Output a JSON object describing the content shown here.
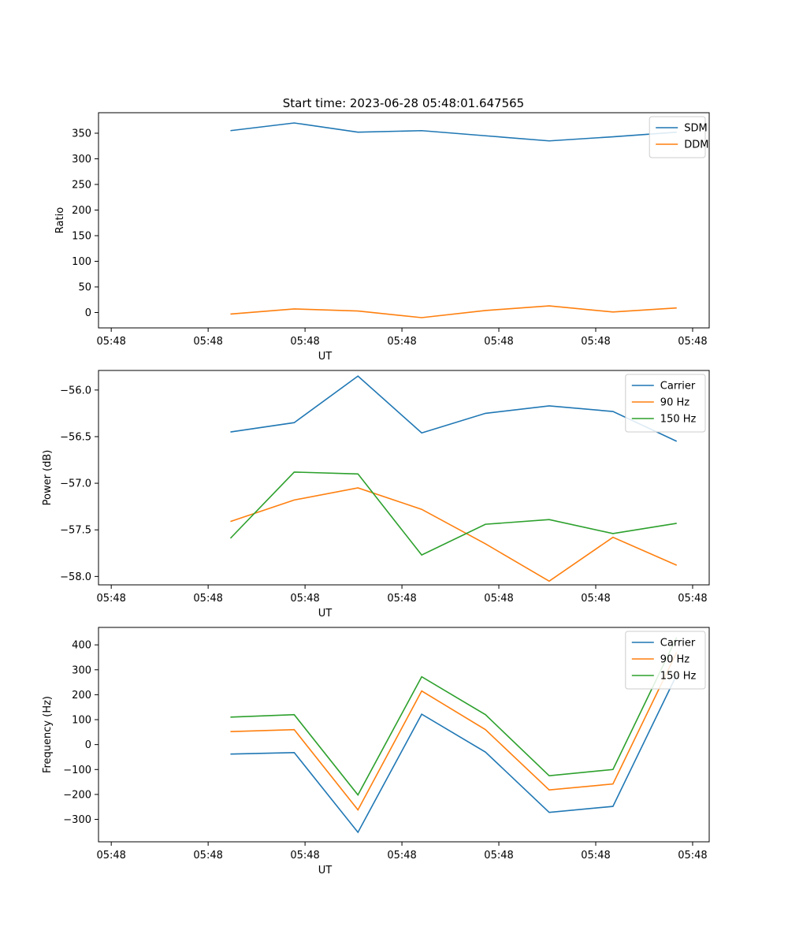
{
  "figure_title": "Start time: 2023-06-28 05:48:01.647565",
  "chart_data": [
    {
      "type": "line",
      "ylabel": "Ratio",
      "xlabel": "UT",
      "xticklabels": [
        "05:48",
        "05:48",
        "05:48",
        "05:48",
        "05:48",
        "05:48",
        "05:48"
      ],
      "xlim": [
        -1.07,
        8.51
      ],
      "ylim": [
        -30,
        390
      ],
      "yticks": [
        0,
        50,
        100,
        150,
        200,
        250,
        300,
        350
      ],
      "yticklabels": [
        "0",
        "50",
        "100",
        "150",
        "200",
        "250",
        "300",
        "350"
      ],
      "legend": "top-right",
      "x": [
        1,
        2,
        3,
        4,
        5,
        6,
        7,
        8
      ],
      "series": [
        {
          "name": "SDM",
          "color": "#1f77b4",
          "values": [
            355,
            370,
            352,
            355,
            345,
            335,
            343,
            352
          ]
        },
        {
          "name": "DDM",
          "color": "#ff7f0e",
          "values": [
            -3,
            7,
            3,
            -10,
            4,
            13,
            1,
            9
          ]
        }
      ]
    },
    {
      "type": "line",
      "ylabel": "Power (dB)",
      "xlabel": "UT",
      "xticklabels": [
        "05:48",
        "05:48",
        "05:48",
        "05:48",
        "05:48",
        "05:48",
        "05:48"
      ],
      "xlim": [
        -1.07,
        8.51
      ],
      "ylim": [
        -58.09,
        -55.79
      ],
      "yticks": [
        -56.0,
        -56.5,
        -57.0,
        -57.5,
        -58.0
      ],
      "yticklabels": [
        "−56.0",
        "−56.5",
        "−57.0",
        "−57.5",
        "−58.0"
      ],
      "legend": "top-right",
      "x": [
        1,
        2,
        3,
        4,
        5,
        6,
        7,
        8
      ],
      "series": [
        {
          "name": "Carrier",
          "color": "#1f77b4",
          "values": [
            -56.45,
            -56.35,
            -55.85,
            -56.46,
            -56.25,
            -56.17,
            -56.23,
            -56.55
          ]
        },
        {
          "name": "90 Hz",
          "color": "#ff7f0e",
          "values": [
            -57.41,
            -57.18,
            -57.05,
            -57.28,
            -57.65,
            -58.05,
            -57.58,
            -57.88
          ]
        },
        {
          "name": "150 Hz",
          "color": "#2ca02c",
          "values": [
            -57.59,
            -56.88,
            -56.9,
            -57.77,
            -57.44,
            -57.39,
            -57.54,
            -57.43
          ]
        }
      ]
    },
    {
      "type": "line",
      "ylabel": "Frequency (Hz)",
      "xlabel": "UT",
      "xticklabels": [
        "05:48",
        "05:48",
        "05:48",
        "05:48",
        "05:48",
        "05:48",
        "05:48"
      ],
      "xlim": [
        -1.07,
        8.51
      ],
      "ylim": [
        -390,
        470
      ],
      "yticks": [
        400,
        300,
        200,
        100,
        0,
        -100,
        -200,
        -300
      ],
      "yticklabels": [
        "400",
        "300",
        "200",
        "100",
        "0",
        "−100",
        "−200",
        "−300"
      ],
      "legend": "top-right",
      "x": [
        1,
        2,
        3,
        4,
        5,
        6,
        7,
        8
      ],
      "series": [
        {
          "name": "Carrier",
          "color": "#1f77b4",
          "values": [
            -38,
            -32,
            -352,
            122,
            -30,
            -272,
            -248,
            280
          ]
        },
        {
          "name": "90 Hz",
          "color": "#ff7f0e",
          "values": [
            52,
            60,
            -262,
            215,
            60,
            -182,
            -158,
            370
          ]
        },
        {
          "name": "150 Hz",
          "color": "#2ca02c",
          "values": [
            110,
            120,
            -202,
            272,
            120,
            -125,
            -100,
            430
          ]
        }
      ]
    }
  ]
}
